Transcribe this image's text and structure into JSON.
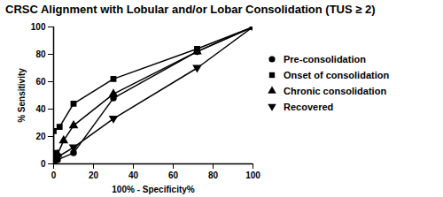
{
  "chart_data": {
    "type": "line",
    "title": "CRSC Alignment with Lobular and/or Lobar Consolidation (TUS ≥ 2)",
    "x_label": "100% - Specificity%",
    "y_label": "% Sensitivity",
    "xlim": [
      0,
      100
    ],
    "ylim": [
      0,
      100
    ],
    "xticks": [
      0,
      20,
      40,
      60,
      80,
      100
    ],
    "yticks": [
      0,
      20,
      40,
      60,
      80,
      100
    ],
    "legend": "right",
    "series": [
      {
        "name": "Pre-consolidation",
        "color": "#000000",
        "marker": "circle",
        "x": [
          0,
          0,
          2,
          10,
          30,
          72,
          100
        ],
        "values": [
          0,
          2,
          3,
          8,
          48,
          82,
          100
        ]
      },
      {
        "name": "Onset of consolidation",
        "color": "#000000",
        "marker": "square",
        "x": [
          0,
          0,
          0,
          3,
          10,
          30,
          72,
          100
        ],
        "values": [
          0,
          8,
          24,
          27,
          44,
          62,
          84,
          100
        ]
      },
      {
        "name": "Chronic consolidation",
        "color": "#000000",
        "marker": "triangle",
        "x": [
          0,
          0,
          2,
          5,
          10,
          30,
          72,
          100
        ],
        "values": [
          0,
          4,
          7,
          17,
          28,
          51,
          82,
          100
        ]
      },
      {
        "name": "Recovered",
        "color": "#000000",
        "marker": "triangle-down",
        "x": [
          0,
          0,
          2,
          10,
          30,
          72,
          100
        ],
        "values": [
          0,
          2,
          5,
          12,
          33,
          70,
          100
        ]
      }
    ]
  }
}
